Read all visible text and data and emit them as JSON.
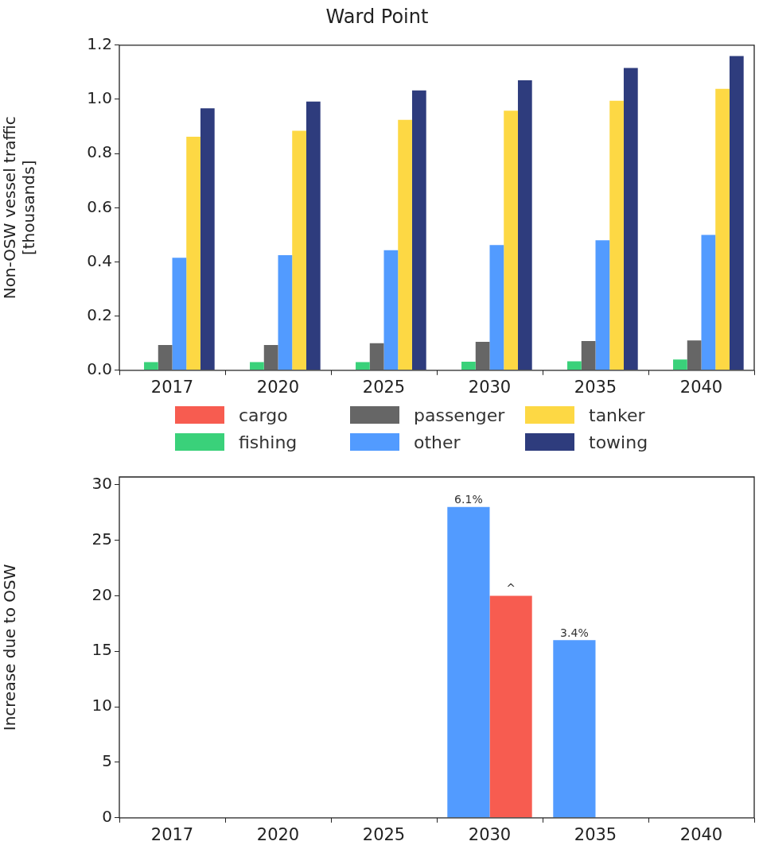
{
  "chart_data": [
    {
      "type": "bar",
      "title": "Ward Point",
      "ylabel": "Non-OSW vessel traffic\n[thousands]",
      "categories": [
        "2017",
        "2020",
        "2025",
        "2030",
        "2035",
        "2040"
      ],
      "series": [
        {
          "name": "cargo",
          "color": "#f75c50",
          "values": [
            0,
            0,
            0,
            0,
            0,
            0
          ]
        },
        {
          "name": "fishing",
          "color": "#3ad17a",
          "values": [
            0.03,
            0.03,
            0.03,
            0.032,
            0.033,
            0.04
          ]
        },
        {
          "name": "passenger",
          "color": "#666666",
          "values": [
            0.093,
            0.093,
            0.1,
            0.105,
            0.108,
            0.11
          ]
        },
        {
          "name": "other",
          "color": "#529bff",
          "values": [
            0.415,
            0.425,
            0.443,
            0.462,
            0.48,
            0.5
          ]
        },
        {
          "name": "tanker",
          "color": "#fdd844",
          "values": [
            0.862,
            0.884,
            0.924,
            0.958,
            0.995,
            1.039
          ]
        },
        {
          "name": "towing",
          "color": "#2e3c7d",
          "values": [
            0.967,
            0.992,
            1.033,
            1.07,
            1.116,
            1.16
          ]
        }
      ],
      "ylim": [
        0,
        1.2
      ],
      "yticks": [
        {
          "value": 0,
          "label": "0.0"
        },
        {
          "value": 0.2,
          "label": "0.2"
        },
        {
          "value": 0.4,
          "label": "0.4"
        },
        {
          "value": 0.6,
          "label": "0.6"
        },
        {
          "value": 0.8,
          "label": "0.8"
        },
        {
          "value": 1,
          "label": "1.0"
        },
        {
          "value": 1.2,
          "label": "1.2"
        }
      ],
      "legend": "bottom"
    },
    {
      "type": "bar",
      "ylabel": "Increase due to OSW",
      "categories": [
        "2017",
        "2020",
        "2025",
        "2030",
        "2035",
        "2040"
      ],
      "series": [
        {
          "color": "#529bff",
          "values": [
            null,
            null,
            null,
            28,
            16,
            null
          ]
        },
        {
          "color": "#f75c50",
          "values": [
            null,
            null,
            null,
            20,
            null,
            null
          ]
        }
      ],
      "annotations": [
        {
          "text": "6.1%",
          "x": "2030",
          "y": 28
        },
        {
          "text": "^",
          "x": "2030",
          "y": 20
        },
        {
          "text": "3.4%",
          "x": "2035",
          "y": 16
        }
      ],
      "ylim": [
        0,
        30.7
      ],
      "yticks": [
        0,
        5,
        10,
        15,
        20,
        25,
        30
      ]
    }
  ]
}
